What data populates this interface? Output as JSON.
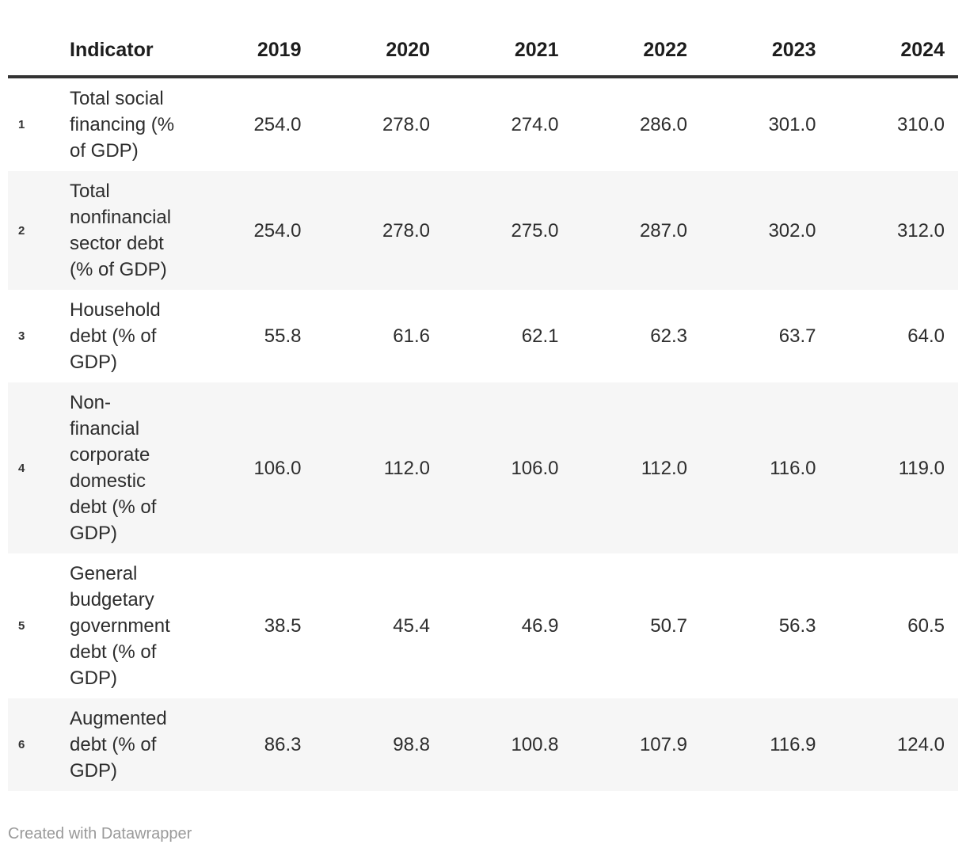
{
  "colors": {
    "background": "#ffffff",
    "header_text": "#1d1d1d",
    "header_border": "#333333",
    "body_text": "#2d2d2d",
    "row_number_text": "#333333",
    "stripe_row_background": "#f6f6f6",
    "attribution_text": "#9a9a9a"
  },
  "attribution": "Created with Datawrapper",
  "chart_data": {
    "type": "table",
    "columns": [
      "Indicator",
      "2019",
      "2020",
      "2021",
      "2022",
      "2023",
      "2024"
    ],
    "rows": [
      {
        "num": "1",
        "indicator": "Total social financing (% of GDP)",
        "values": [
          "254.0",
          "278.0",
          "274.0",
          "286.0",
          "301.0",
          "310.0"
        ]
      },
      {
        "num": "2",
        "indicator": "Total nonfinancial sector debt (% of GDP)",
        "values": [
          "254.0",
          "278.0",
          "275.0",
          "287.0",
          "302.0",
          "312.0"
        ]
      },
      {
        "num": "3",
        "indicator": "Household debt (% of GDP)",
        "values": [
          "55.8",
          "61.6",
          "62.1",
          "62.3",
          "63.7",
          "64.0"
        ]
      },
      {
        "num": "4",
        "indicator": "Non-financial corporate domestic debt (% of GDP)",
        "values": [
          "106.0",
          "112.0",
          "106.0",
          "112.0",
          "116.0",
          "119.0"
        ]
      },
      {
        "num": "5",
        "indicator": "General budgetary government debt (% of GDP)",
        "values": [
          "38.5",
          "45.4",
          "46.9",
          "50.7",
          "56.3",
          "60.5"
        ]
      },
      {
        "num": "6",
        "indicator": "Augmented debt (% of GDP)",
        "values": [
          "86.3",
          "98.8",
          "100.8",
          "107.9",
          "116.9",
          "124.0"
        ]
      }
    ],
    "title": "",
    "footer": "Created with Datawrapper",
    "layout_hints": {
      "zebra_striping": true,
      "gridlines": false,
      "value_alignment": "right",
      "header_rule": "thick-dark"
    }
  }
}
